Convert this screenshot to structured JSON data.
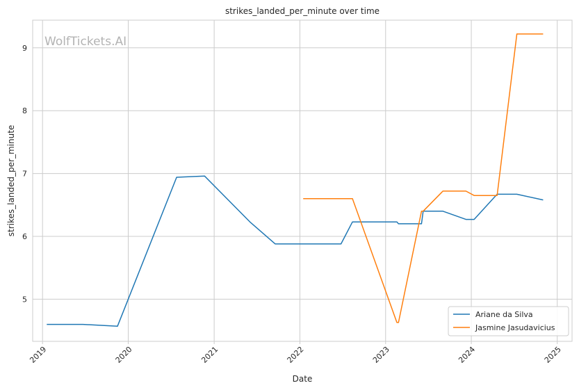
{
  "chart_data": {
    "type": "line",
    "title": "strikes_landed_per_minute over time",
    "xlabel": "Date",
    "ylabel": "strikes_landed_per_minute",
    "watermark": "WolfTickets.AI",
    "x_ticks": [
      "2019",
      "2020",
      "2021",
      "2022",
      "2023",
      "2024",
      "2025"
    ],
    "y_ticks": [
      "5",
      "6",
      "7",
      "8",
      "9"
    ],
    "xlim": [
      "2018-11-20",
      "2025-03-05"
    ],
    "ylim": [
      4.33,
      9.44
    ],
    "grid": true,
    "legend_position": "lower-right",
    "colors": {
      "Ariane da Silva": "#1f77b4",
      "Jasmine Jasudavicius": "#ff7f0e",
      "grid": "#cccccc",
      "spine": "#cccccc"
    },
    "series": [
      {
        "name": "Ariane da Silva",
        "points": [
          {
            "x": "2019-01-19",
            "y": 4.6
          },
          {
            "x": "2019-06-22",
            "y": 4.6
          },
          {
            "x": "2019-11-16",
            "y": 4.57
          },
          {
            "x": "2020-07-25",
            "y": 6.94
          },
          {
            "x": "2020-11-21",
            "y": 6.96
          },
          {
            "x": "2021-06-05",
            "y": 6.22
          },
          {
            "x": "2021-09-18",
            "y": 5.88
          },
          {
            "x": "2022-06-25",
            "y": 5.88
          },
          {
            "x": "2022-08-13",
            "y": 6.23
          },
          {
            "x": "2023-02-18",
            "y": 6.23
          },
          {
            "x": "2023-02-25",
            "y": 6.2
          },
          {
            "x": "2023-06-03",
            "y": 6.2
          },
          {
            "x": "2023-06-10",
            "y": 6.4
          },
          {
            "x": "2023-09-02",
            "y": 6.4
          },
          {
            "x": "2023-12-09",
            "y": 6.27
          },
          {
            "x": "2024-01-13",
            "y": 6.27
          },
          {
            "x": "2024-04-20",
            "y": 6.67
          },
          {
            "x": "2024-07-13",
            "y": 6.67
          },
          {
            "x": "2024-11-02",
            "y": 6.58
          }
        ]
      },
      {
        "name": "Jasmine Jasudavicius",
        "points": [
          {
            "x": "2022-01-15",
            "y": 6.6
          },
          {
            "x": "2022-08-13",
            "y": 6.6
          },
          {
            "x": "2023-02-18",
            "y": 4.63
          },
          {
            "x": "2023-02-25",
            "y": 4.63
          },
          {
            "x": "2023-06-03",
            "y": 6.4
          },
          {
            "x": "2023-06-10",
            "y": 6.4
          },
          {
            "x": "2023-09-02",
            "y": 6.72
          },
          {
            "x": "2023-12-09",
            "y": 6.72
          },
          {
            "x": "2024-01-13",
            "y": 6.65
          },
          {
            "x": "2024-04-20",
            "y": 6.65
          },
          {
            "x": "2024-07-13",
            "y": 9.22
          },
          {
            "x": "2024-11-02",
            "y": 9.22
          }
        ]
      }
    ]
  }
}
